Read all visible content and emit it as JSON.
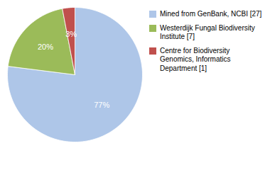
{
  "chart_data": {
    "type": "pie",
    "categories": [
      "Mined from GenBank, NCBI [27]",
      "Westerdijk Fungal Biodiversity\nInstitute [7]",
      "Centre for Biodiversity\nGenomics, Informatics\nDepartment [1]"
    ],
    "values": [
      77,
      20,
      3
    ],
    "value_labels": [
      "77%",
      "20%",
      "3%"
    ],
    "colors": [
      "#aec6e8",
      "#9bbb59",
      "#c0504d"
    ],
    "data_labels": true,
    "legend": "right"
  }
}
